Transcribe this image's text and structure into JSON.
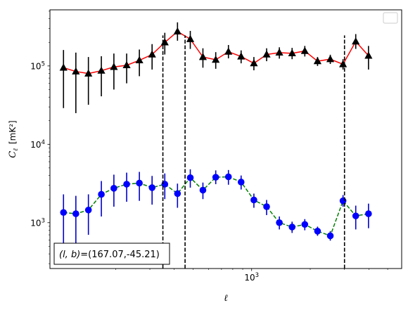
{
  "chart_data": {
    "type": "scatter",
    "xscale": "log",
    "yscale": "log",
    "xlim": [
      92,
      5900
    ],
    "ylim": [
      260,
      520000
    ],
    "xlabel": "ℓ",
    "ylabel_main": "C",
    "ylabel_sub": "ℓ",
    "ylabel_unit": "[mK²]",
    "x_ticks": [
      {
        "value": 1000,
        "base": "10",
        "exp": "3"
      }
    ],
    "y_ticks": [
      {
        "value": 1000,
        "base": "10",
        "exp": "3"
      },
      {
        "value": 10000,
        "base": "10",
        "exp": "4"
      },
      {
        "value": 100000,
        "base": "10",
        "exp": "5"
      }
    ],
    "vlines": [
      {
        "x": 350,
        "y_top": 245000
      },
      {
        "x": 455,
        "y_top": 245000
      },
      {
        "x": 3000,
        "y_top": 245000
      }
    ],
    "annotation": "(l, b)=(167.07,-45.21)",
    "annotation_parts": {
      "lhs": "(l, b)",
      "rhs": "=(167.07,-45.21)"
    },
    "legend": {
      "placement": "top-right",
      "entries": []
    },
    "series": [
      {
        "line_color": "#ff0000",
        "line_style": "solid",
        "marker": "triangle",
        "marker_color": "#000000",
        "err_color": "#000000",
        "points": [
          {
            "x": 108,
            "y": 95000,
            "lo": 29000,
            "hi": 160000
          },
          {
            "x": 125,
            "y": 85000,
            "lo": 25000,
            "hi": 148000
          },
          {
            "x": 145,
            "y": 80000,
            "lo": 32000,
            "hi": 130000
          },
          {
            "x": 169,
            "y": 87000,
            "lo": 41000,
            "hi": 133000
          },
          {
            "x": 196,
            "y": 97000,
            "lo": 50000,
            "hi": 144000
          },
          {
            "x": 228,
            "y": 102000,
            "lo": 60000,
            "hi": 144000
          },
          {
            "x": 265,
            "y": 118000,
            "lo": 74000,
            "hi": 162000
          },
          {
            "x": 308,
            "y": 140000,
            "lo": 90000,
            "hi": 190000
          },
          {
            "x": 358,
            "y": 200000,
            "lo": 140000,
            "hi": 265000
          },
          {
            "x": 416,
            "y": 275000,
            "lo": 210000,
            "hi": 360000
          },
          {
            "x": 484,
            "y": 220000,
            "lo": 165000,
            "hi": 280000
          },
          {
            "x": 562,
            "y": 130000,
            "lo": 95000,
            "hi": 168000
          },
          {
            "x": 654,
            "y": 120000,
            "lo": 92000,
            "hi": 150000
          },
          {
            "x": 760,
            "y": 152000,
            "lo": 125000,
            "hi": 185000
          },
          {
            "x": 883,
            "y": 132000,
            "lo": 108000,
            "hi": 158000
          },
          {
            "x": 1027,
            "y": 108000,
            "lo": 88000,
            "hi": 130000
          },
          {
            "x": 1194,
            "y": 140000,
            "lo": 115000,
            "hi": 168000
          },
          {
            "x": 1388,
            "y": 148000,
            "lo": 124000,
            "hi": 173000
          },
          {
            "x": 1614,
            "y": 145000,
            "lo": 122000,
            "hi": 170000
          },
          {
            "x": 1876,
            "y": 155000,
            "lo": 132000,
            "hi": 180000
          },
          {
            "x": 2181,
            "y": 115000,
            "lo": 100000,
            "hi": 130000
          },
          {
            "x": 2536,
            "y": 122000,
            "lo": 106000,
            "hi": 139000
          },
          {
            "x": 2948,
            "y": 105000,
            "lo": 90000,
            "hi": 122000
          },
          {
            "x": 3427,
            "y": 205000,
            "lo": 165000,
            "hi": 255000
          },
          {
            "x": 3985,
            "y": 135000,
            "lo": 90000,
            "hi": 180000
          }
        ]
      },
      {
        "line_color": "#008000",
        "line_style": "dashed",
        "marker": "circle",
        "marker_color": "#0000ff",
        "err_color": "#0000cc",
        "points": [
          {
            "x": 108,
            "y": 1350,
            "lo": 400,
            "hi": 2300
          },
          {
            "x": 125,
            "y": 1300,
            "lo": 400,
            "hi": 2200
          },
          {
            "x": 145,
            "y": 1450,
            "lo": 700,
            "hi": 2300
          },
          {
            "x": 169,
            "y": 2300,
            "lo": 1200,
            "hi": 3400
          },
          {
            "x": 196,
            "y": 2750,
            "lo": 1600,
            "hi": 4100
          },
          {
            "x": 228,
            "y": 3100,
            "lo": 1850,
            "hi": 4350
          },
          {
            "x": 265,
            "y": 3200,
            "lo": 1900,
            "hi": 4450
          },
          {
            "x": 308,
            "y": 2800,
            "lo": 1700,
            "hi": 3950
          },
          {
            "x": 358,
            "y": 3100,
            "lo": 2000,
            "hi": 4250
          },
          {
            "x": 416,
            "y": 2350,
            "lo": 1550,
            "hi": 3150
          },
          {
            "x": 484,
            "y": 3750,
            "lo": 2800,
            "hi": 4800
          },
          {
            "x": 562,
            "y": 2600,
            "lo": 2000,
            "hi": 3250
          },
          {
            "x": 654,
            "y": 3800,
            "lo": 3100,
            "hi": 4650
          },
          {
            "x": 760,
            "y": 3850,
            "lo": 3050,
            "hi": 4700
          },
          {
            "x": 883,
            "y": 3300,
            "lo": 2650,
            "hi": 4000
          },
          {
            "x": 1027,
            "y": 1950,
            "lo": 1550,
            "hi": 2350
          },
          {
            "x": 1194,
            "y": 1600,
            "lo": 1250,
            "hi": 1950
          },
          {
            "x": 1388,
            "y": 1000,
            "lo": 820,
            "hi": 1200
          },
          {
            "x": 1614,
            "y": 880,
            "lo": 740,
            "hi": 1030
          },
          {
            "x": 1876,
            "y": 950,
            "lo": 800,
            "hi": 1110
          },
          {
            "x": 2181,
            "y": 780,
            "lo": 680,
            "hi": 890
          },
          {
            "x": 2536,
            "y": 680,
            "lo": 590,
            "hi": 780
          },
          {
            "x": 2948,
            "y": 1900,
            "lo": 1600,
            "hi": 2250
          },
          {
            "x": 3427,
            "y": 1220,
            "lo": 820,
            "hi": 1650
          },
          {
            "x": 3985,
            "y": 1300,
            "lo": 850,
            "hi": 1750
          }
        ]
      }
    ]
  }
}
